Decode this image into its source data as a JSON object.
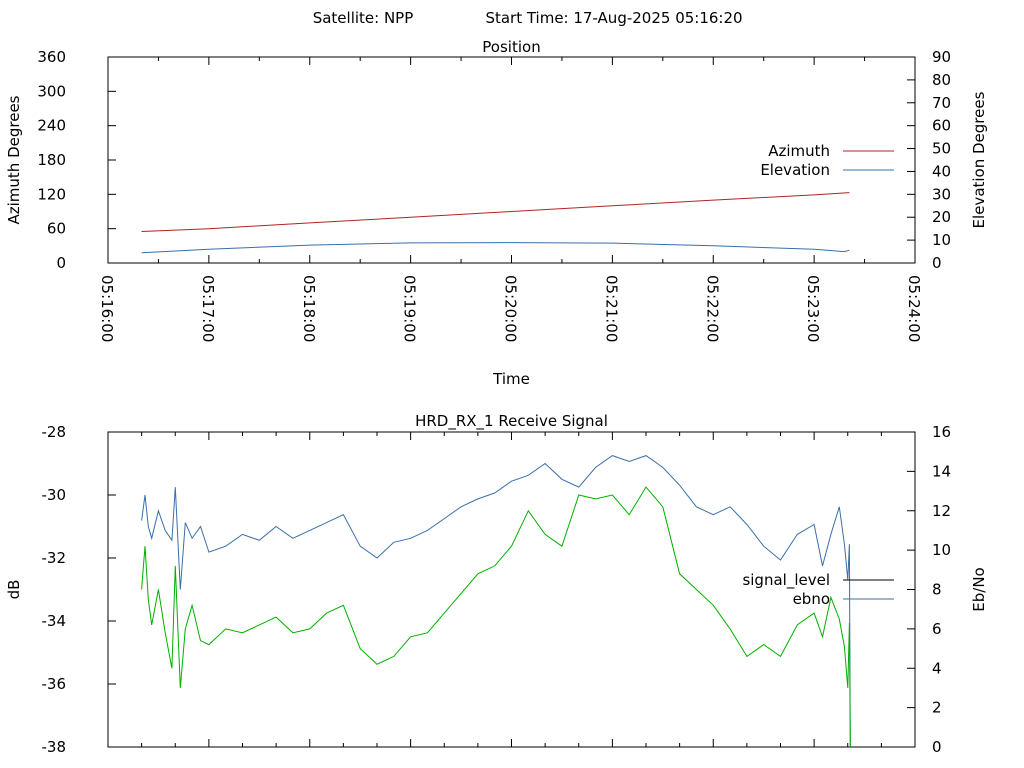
{
  "header": {
    "satellite_label": "Satellite: NPP",
    "start_time_label": "Start Time: 17-Aug-2025 05:16:20"
  },
  "colors": {
    "azimuth": "#b22222",
    "elevation": "#3a6fa8",
    "signal_level": "#000000",
    "ebno": "#3a6fa8",
    "trace_green": "#00b000"
  },
  "chart_data": [
    {
      "type": "line",
      "title": "Position",
      "xlabel": "Time",
      "ylabel": "Azimuth Degrees",
      "y2label": "Elevation Degrees",
      "legend": "right",
      "grid": false,
      "x_ticks": [
        "05:16:00",
        "05:17:00",
        "05:18:00",
        "05:19:00",
        "05:20:00",
        "05:21:00",
        "05:22:00",
        "05:23:00",
        "05:24:00"
      ],
      "x_tick_min": [
        0,
        60,
        120,
        180,
        240,
        300,
        360,
        420,
        480
      ],
      "xlim": [
        0,
        480
      ],
      "ylim": [
        0,
        360
      ],
      "y_ticks": [
        0,
        60,
        120,
        180,
        240,
        300,
        360
      ],
      "y2lim": [
        0,
        90
      ],
      "y2_ticks": [
        0,
        10,
        20,
        30,
        40,
        50,
        60,
        70,
        80,
        90
      ],
      "series": [
        {
          "name": "Azimuth",
          "axis": "y",
          "color_key": "azimuth",
          "x": [
            20,
            60,
            120,
            180,
            240,
            300,
            360,
            420,
            441
          ],
          "y": [
            55,
            60,
            70,
            80,
            90,
            100,
            110,
            119,
            123
          ]
        },
        {
          "name": "Elevation",
          "axis": "y2",
          "color_key": "elevation",
          "x": [
            20,
            60,
            120,
            180,
            240,
            300,
            360,
            420,
            438,
            441
          ],
          "y": [
            4.5,
            6,
            7.8,
            8.8,
            8.9,
            8.7,
            7.5,
            6,
            5,
            5.6
          ]
        }
      ]
    },
    {
      "type": "line",
      "title": "HRD_RX_1 Receive Signal",
      "xlabel": "",
      "ylabel": "dB",
      "y2label": "Eb/No",
      "legend": "right",
      "grid": false,
      "xlim": [
        0,
        480
      ],
      "ylim": [
        -38,
        -28
      ],
      "y_ticks": [
        -28,
        -30,
        -32,
        -34,
        -36,
        -38
      ],
      "y2lim": [
        0,
        16
      ],
      "y2_ticks": [
        0,
        2,
        4,
        6,
        8,
        10,
        12,
        14,
        16
      ],
      "series": [
        {
          "name": "signal_level",
          "axis": "y",
          "color_key": "signal_level",
          "x": [],
          "y": []
        },
        {
          "name": "ebno",
          "axis": "y2",
          "color_key": "ebno",
          "x": [
            20,
            22,
            24,
            26,
            30,
            34,
            38,
            40,
            43,
            46,
            50,
            55,
            60,
            70,
            80,
            90,
            100,
            110,
            120,
            130,
            140,
            150,
            160,
            170,
            180,
            190,
            200,
            210,
            220,
            230,
            240,
            250,
            260,
            270,
            280,
            290,
            300,
            310,
            320,
            330,
            340,
            350,
            360,
            370,
            380,
            390,
            400,
            410,
            420,
            425,
            430,
            435,
            438,
            440,
            441,
            441.5
          ],
          "y": [
            11.5,
            12.8,
            11.2,
            10.6,
            12,
            11,
            10.5,
            13.2,
            8,
            11.4,
            10.6,
            11.2,
            9.9,
            10.2,
            10.8,
            10.5,
            11.2,
            10.6,
            11,
            11.4,
            11.8,
            10.2,
            9.6,
            10.4,
            10.6,
            11,
            11.6,
            12.2,
            12.6,
            12.9,
            13.5,
            13.8,
            14.4,
            13.6,
            13.2,
            14.2,
            14.8,
            14.5,
            14.8,
            14.2,
            13.3,
            12.2,
            11.8,
            12.2,
            11.3,
            10.2,
            9.5,
            10.8,
            11.3,
            9.2,
            10.8,
            12.2,
            10.3,
            8.5,
            10.3,
            0
          ]
        },
        {
          "name": "",
          "axis": "y2",
          "color_key": "trace_green",
          "x": [
            20,
            22,
            24,
            26,
            30,
            34,
            38,
            40,
            43,
            46,
            50,
            55,
            60,
            70,
            80,
            90,
            100,
            110,
            120,
            130,
            140,
            150,
            160,
            170,
            180,
            190,
            200,
            210,
            220,
            230,
            240,
            250,
            260,
            270,
            280,
            290,
            300,
            310,
            320,
            330,
            340,
            350,
            360,
            370,
            380,
            390,
            400,
            410,
            420,
            425,
            430,
            435,
            438,
            440,
            441,
            441.5
          ],
          "y": [
            8,
            10.2,
            7.5,
            6.2,
            8,
            5.8,
            4,
            9.2,
            3,
            6,
            7.2,
            5.4,
            5.2,
            6,
            5.8,
            6.2,
            6.6,
            5.8,
            6,
            6.8,
            7.2,
            5,
            4.2,
            4.6,
            5.6,
            5.8,
            6.8,
            7.8,
            8.8,
            9.2,
            10.2,
            12,
            10.8,
            10.2,
            12.8,
            12.6,
            12.8,
            11.8,
            13.2,
            12.2,
            8.8,
            8,
            7.2,
            6,
            4.6,
            5.2,
            4.6,
            6.2,
            6.8,
            5.6,
            7.6,
            6.5,
            5.1,
            3,
            6.3,
            0
          ]
        }
      ]
    }
  ]
}
